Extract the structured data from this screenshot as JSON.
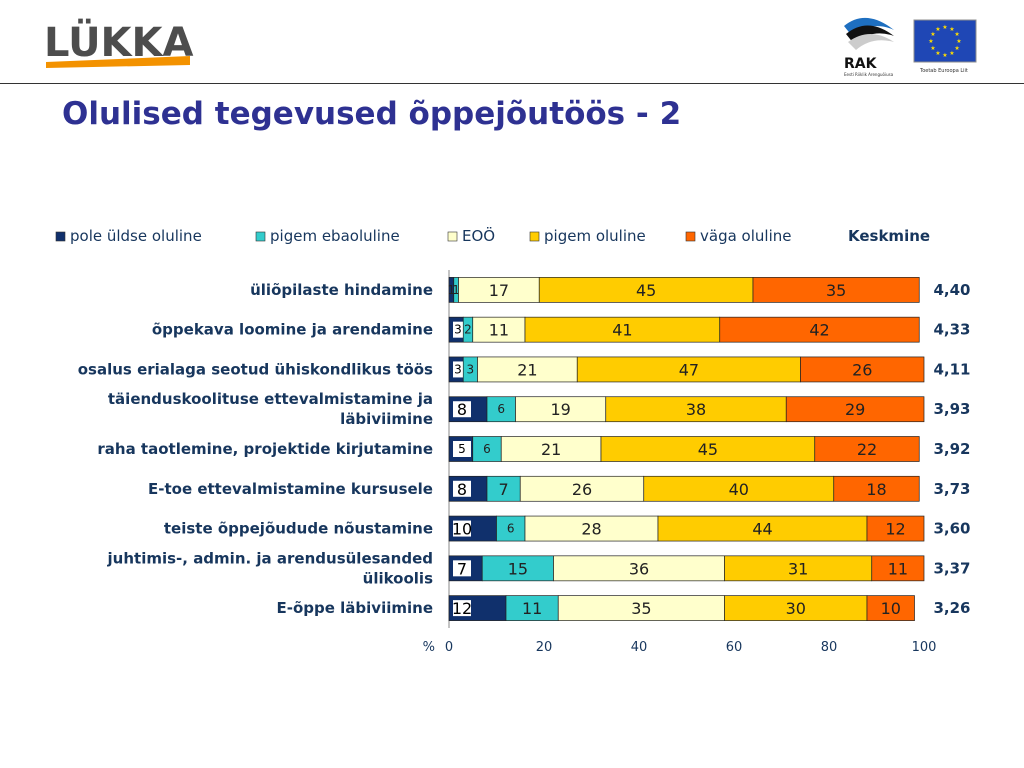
{
  "header": {
    "logo_text": "LÜKKA",
    "rak_text": "RAK",
    "rak_subtext": "Eesti Riiklik Arenguõiusa",
    "eu_caption": "Toetab Euroopa Liit"
  },
  "page": {
    "title": "Olulised tegevused õppejõutöös - 2"
  },
  "colors": {
    "title": "#2e3192",
    "pole_uldse_oluline": "#10306c",
    "pigem_ebaoluline": "#33cccc",
    "eoo": "#ffffcc",
    "pigem_oluline": "#ffcc00",
    "vaga_oluline": "#ff6600",
    "label_text": "#17365d"
  },
  "chart_data": {
    "type": "bar",
    "orientation": "horizontal",
    "stacked": true,
    "categories": [
      "üliõpilaste hindamine",
      "õppekava loomine ja arendamine",
      "osalus erialaga seotud ühiskondlikus töös",
      "täienduskoolituse ettevalmistamine ja läbiviimine",
      "raha taotlemine, projektide kirjutamine",
      "E-toe ettevalmistamine kursusele",
      "teiste õppejõudude nõustamine",
      "juhtimis-, admin. ja arendusülesanded ülikoolis",
      "E-õppe läbiviimine"
    ],
    "series": [
      {
        "name": "pole üldse oluline",
        "values": [
          1,
          3,
          3,
          8,
          5,
          8,
          10,
          7,
          12
        ]
      },
      {
        "name": "pigem ebaoluline",
        "values": [
          1,
          2,
          3,
          6,
          6,
          7,
          6,
          15,
          11
        ]
      },
      {
        "name": "EOÖ",
        "values": [
          17,
          11,
          21,
          19,
          21,
          26,
          28,
          36,
          35
        ]
      },
      {
        "name": "pigem oluline",
        "values": [
          45,
          41,
          47,
          38,
          45,
          40,
          44,
          31,
          30
        ]
      },
      {
        "name": "väga oluline",
        "values": [
          35,
          42,
          26,
          29,
          22,
          18,
          12,
          11,
          10
        ]
      }
    ],
    "average_label": "Keskmine",
    "averages": [
      "4,40",
      "4,33",
      "4,11",
      "3,93",
      "3,92",
      "3,73",
      "3,60",
      "3,37",
      "3,26"
    ],
    "x_unit": "%",
    "xlim": [
      0,
      100
    ],
    "x_ticks": [
      0,
      20,
      40,
      60,
      80,
      100
    ],
    "legend_position": "top",
    "grid": false
  }
}
